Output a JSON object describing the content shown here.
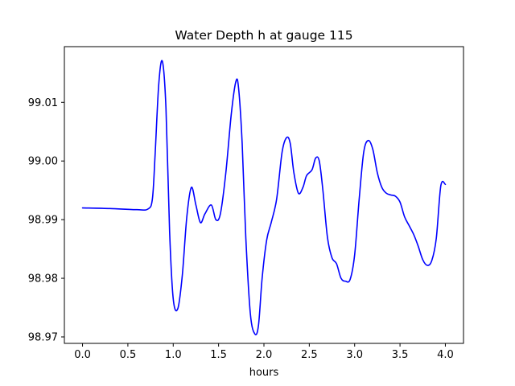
{
  "chart_data": {
    "type": "line",
    "title": "Water Depth h at gauge 115",
    "xlabel": "hours",
    "ylabel": "",
    "xlim": [
      -0.2,
      4.2
    ],
    "ylim": [
      98.9689,
      99.0195
    ],
    "grid": false,
    "x_ticks": [
      0.0,
      0.5,
      1.0,
      1.5,
      2.0,
      2.5,
      3.0,
      3.5,
      4.0
    ],
    "x_tick_labels": [
      "0.0",
      "0.5",
      "1.0",
      "1.5",
      "2.0",
      "2.5",
      "3.0",
      "3.5",
      "4.0"
    ],
    "y_ticks": [
      98.97,
      98.98,
      98.99,
      99.0,
      99.01
    ],
    "y_tick_labels": [
      "98.97",
      "98.98",
      "98.99",
      "99.00",
      "99.01"
    ],
    "series": [
      {
        "color": "#0000ff",
        "x": [
          0.0,
          0.3,
          0.6,
          0.72,
          0.77,
          0.8,
          0.84,
          0.88,
          0.92,
          0.96,
          1.0,
          1.05,
          1.1,
          1.15,
          1.2,
          1.25,
          1.3,
          1.35,
          1.42,
          1.47,
          1.52,
          1.58,
          1.64,
          1.69,
          1.72,
          1.76,
          1.8,
          1.85,
          1.9,
          1.94,
          1.98,
          2.03,
          2.08,
          2.14,
          2.2,
          2.25,
          2.29,
          2.33,
          2.38,
          2.43,
          2.47,
          2.53,
          2.57,
          2.61,
          2.65,
          2.7,
          2.75,
          2.8,
          2.85,
          2.9,
          2.95,
          3.0,
          3.05,
          3.1,
          3.15,
          3.2,
          3.25,
          3.3,
          3.35,
          3.4,
          3.45,
          3.5,
          3.55,
          3.6,
          3.65,
          3.7,
          3.75,
          3.8,
          3.85,
          3.9,
          3.95,
          4.0
        ],
        "y": [
          98.992,
          98.9919,
          98.9917,
          98.9918,
          98.9935,
          99.001,
          99.013,
          99.017,
          99.009,
          98.988,
          98.9765,
          98.9748,
          98.9805,
          98.9905,
          98.9955,
          98.9925,
          98.9895,
          98.991,
          98.9925,
          98.99,
          98.991,
          98.998,
          99.008,
          99.0135,
          99.0125,
          99.003,
          98.987,
          98.974,
          98.9705,
          98.972,
          98.98,
          98.9865,
          98.9895,
          98.9935,
          99.0015,
          99.004,
          99.003,
          98.998,
          98.9945,
          98.9955,
          98.9975,
          98.9985,
          99.0005,
          99.0,
          98.995,
          98.987,
          98.9835,
          98.9825,
          98.98,
          98.9795,
          98.9798,
          98.984,
          98.9935,
          99.0015,
          99.0035,
          99.002,
          98.998,
          98.9955,
          98.9945,
          98.9942,
          98.994,
          98.993,
          98.9905,
          98.989,
          98.9875,
          98.9855,
          98.9832,
          98.9822,
          98.983,
          98.9868,
          98.9958,
          98.996
        ]
      }
    ]
  }
}
